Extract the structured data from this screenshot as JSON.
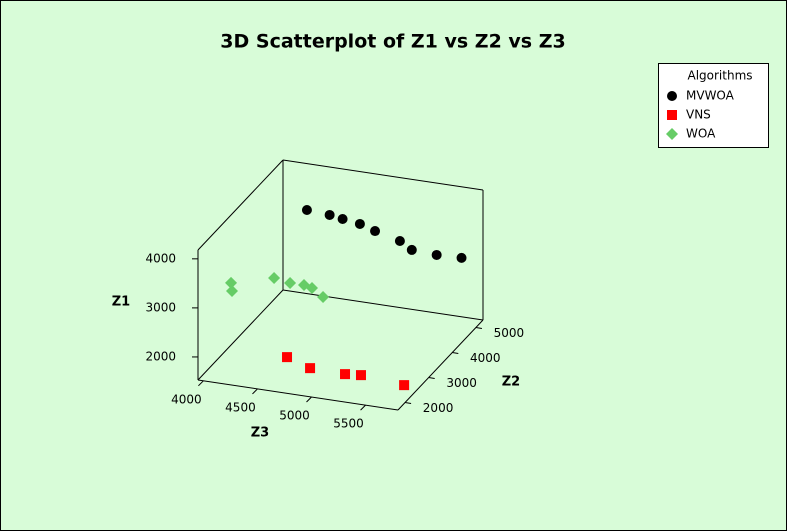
{
  "chart_data": {
    "type": "scatter3d",
    "title": "3D Scatterplot of Z1 vs Z2 vs Z3",
    "x_label": "Z3",
    "y_label": "Z2",
    "z_label": "Z1",
    "xlim": [
      3950,
      5800
    ],
    "ylim": [
      1700,
      5300
    ],
    "zlim": [
      1530,
      4180
    ],
    "xticks": [
      4000,
      4500,
      5000,
      5500
    ],
    "yticks": [
      2000,
      3000,
      4000,
      5000
    ],
    "zticks": [
      2000,
      3000,
      4000
    ],
    "legend_title": "Algorithms",
    "legend_position": "upper right",
    "series": [
      {
        "name": "MVWOA",
        "color": "#000000",
        "marker": "circle",
        "x": [
          4250,
          4460,
          4580,
          4740,
          4880,
          5110,
          5220,
          5450,
          5680
        ],
        "y": [
          4940,
          4940,
          4940,
          4940,
          4940,
          4940,
          4940,
          4940,
          4940
        ],
        "z": [
          3443,
          3412,
          3369,
          3321,
          3223,
          3096,
          2950,
          2924,
          2940
        ]
      },
      {
        "name": "VNS",
        "color": "#ff0000",
        "marker": "square",
        "x": [
          4545,
          4816,
          5145,
          5282,
          5708
        ],
        "y": [
          2746,
          2481,
          2455,
          2504,
          2380
        ],
        "z": [
          1660,
          1660,
          1660,
          1660,
          1660
        ]
      },
      {
        "name": "WOA",
        "color": "#66cc66",
        "marker": "diamond",
        "x": [
          4059,
          4068,
          4457,
          4605,
          4734,
          4808,
          4910
        ],
        "y": [
          2600,
          2600,
          2600,
          2600,
          2600,
          2600,
          2600
        ],
        "z": [
          3086,
          2924,
          3319,
          3266,
          3266,
          3231,
          3080
        ]
      }
    ]
  }
}
